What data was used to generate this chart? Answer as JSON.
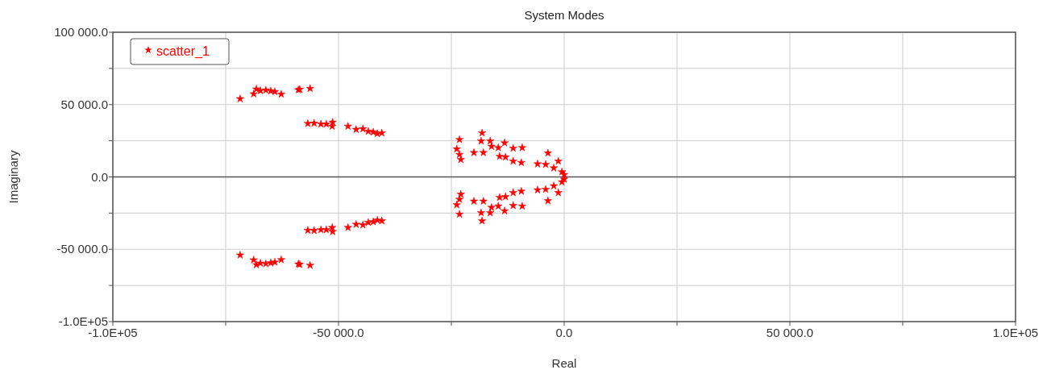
{
  "chart_data": {
    "type": "scatter",
    "title": "System Modes",
    "xlabel": "Real",
    "ylabel": "Imaginary",
    "xlim": [
      -100000,
      100000
    ],
    "ylim": [
      -100000,
      100000
    ],
    "xticks": [
      {
        "value": -100000,
        "label": "-1.0E+05"
      },
      {
        "value": -75000,
        "label": null
      },
      {
        "value": -50000,
        "label": "-50 000.0"
      },
      {
        "value": -25000,
        "label": null
      },
      {
        "value": 0,
        "label": "0.0"
      },
      {
        "value": 25000,
        "label": null
      },
      {
        "value": 50000,
        "label": "50 000.0"
      },
      {
        "value": 75000,
        "label": null
      },
      {
        "value": 100000,
        "label": "1.0E+05"
      }
    ],
    "yticks": [
      {
        "value": -100000,
        "label": "-1.0E+05"
      },
      {
        "value": -75000,
        "label": null
      },
      {
        "value": -50000,
        "label": "-50 000.0"
      },
      {
        "value": -25000,
        "label": null
      },
      {
        "value": 0,
        "label": "0.0"
      },
      {
        "value": 25000,
        "label": null
      },
      {
        "value": 50000,
        "label": "50 000.0"
      },
      {
        "value": 75000,
        "label": null
      },
      {
        "value": 100000,
        "label": "100 000.0"
      }
    ],
    "grid": true,
    "legend": "top left",
    "marker": "star",
    "ref_lines": [
      {
        "axis": "y",
        "value": 0,
        "color": "#555555"
      }
    ],
    "series": [
      {
        "name": "scatter_1",
        "color": "#ff0000",
        "x": [
          -71800,
          -68800,
          -68200,
          -67300,
          -66100,
          -65000,
          -64100,
          -62700,
          -58900,
          -58600,
          -56300,
          -56800,
          -55400,
          -53900,
          -52700,
          -51300,
          -51400,
          -47900,
          -46100,
          -44600,
          -43400,
          -42300,
          -41400,
          -40400,
          -23200,
          -23800,
          -23200,
          -22900,
          -20000,
          -17900,
          -18200,
          -18400,
          -16400,
          -16100,
          -14600,
          -13200,
          -11300,
          -9300,
          -14300,
          -13000,
          -11300,
          -9500,
          -3600,
          -5900,
          -4100,
          -2300,
          -1300,
          -500,
          0,
          -71800,
          -68800,
          -68200,
          -67300,
          -66100,
          -65000,
          -64100,
          -62700,
          -58900,
          -58600,
          -56300,
          -56800,
          -55400,
          -53900,
          -52700,
          -51300,
          -51400,
          -47900,
          -46100,
          -44600,
          -43400,
          -42300,
          -41400,
          -40400,
          -23200,
          -23800,
          -23200,
          -22900,
          -20000,
          -17900,
          -18200,
          -18400,
          -16400,
          -16100,
          -14600,
          -13200,
          -11300,
          -9300,
          -14300,
          -13000,
          -11300,
          -9500,
          -3600,
          -5900,
          -4100,
          -2300,
          -1300,
          -500,
          0
        ],
        "values": [
          54000,
          57400,
          60700,
          59600,
          60000,
          59400,
          58900,
          57200,
          60200,
          60500,
          61100,
          36900,
          37100,
          36500,
          36500,
          37800,
          35000,
          35000,
          32800,
          33200,
          31500,
          31000,
          29900,
          30400,
          25800,
          19300,
          15500,
          12000,
          16800,
          16800,
          30400,
          24800,
          24800,
          21100,
          20200,
          23500,
          19800,
          20200,
          14200,
          13700,
          10900,
          9900,
          16500,
          9000,
          8600,
          6200,
          10900,
          3500,
          1600,
          -54000,
          -57400,
          -60700,
          -59600,
          -60000,
          -59400,
          -58900,
          -57200,
          -60200,
          -60500,
          -61100,
          -36900,
          -37100,
          -36500,
          -36500,
          -37800,
          -35000,
          -35000,
          -32800,
          -33200,
          -31500,
          -31000,
          -29900,
          -30400,
          -25800,
          -19300,
          -15500,
          -12000,
          -16800,
          -16800,
          -30400,
          -24800,
          -24800,
          -21100,
          -20200,
          -23500,
          -19800,
          -20200,
          -14200,
          -13700,
          -10900,
          -9900,
          -16500,
          -9000,
          -8600,
          -6200,
          -10900,
          -3500,
          -1600
        ]
      }
    ]
  }
}
